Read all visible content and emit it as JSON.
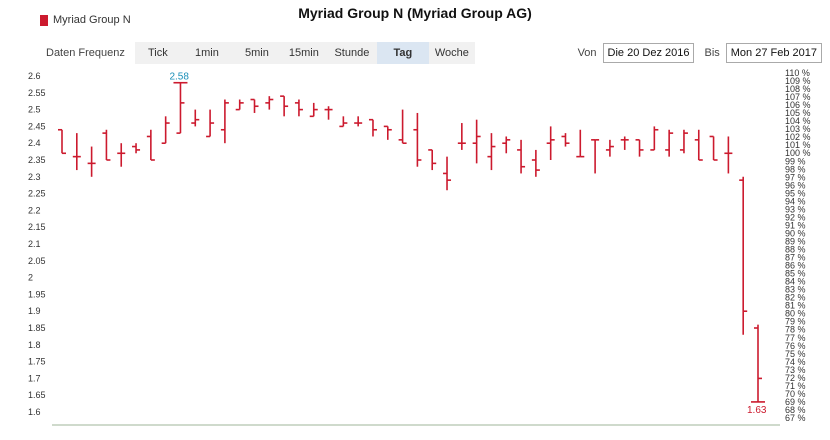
{
  "legend": {
    "label": "Myriad Group N",
    "color": "#cc1a2e"
  },
  "title": "Myriad Group N (Myriad Group AG)",
  "toolbar": {
    "label": "Daten Frequenz",
    "tabs": [
      "Tick",
      "1min",
      "5min",
      "15min",
      "Stunde",
      "Tag",
      "Woche"
    ],
    "active": "Tag"
  },
  "dates": {
    "from_label": "Von",
    "from_value": "Die 20 Dez 2016",
    "to_label": "Bis",
    "to_value": "Mon 27 Feb 2017"
  },
  "chart_data": {
    "type": "ohlc",
    "title": "Myriad Group N (Myriad Group AG)",
    "series_name": "Myriad Group N",
    "color": "#cc1a2e",
    "ylim": [
      1.6,
      2.6
    ],
    "yticks": [
      2.6,
      2.55,
      2.5,
      2.45,
      2.4,
      2.35,
      2.3,
      2.25,
      2.2,
      2.15,
      2.1,
      2.05,
      2,
      1.95,
      1.9,
      1.85,
      1.8,
      1.75,
      1.7,
      1.65,
      1.6
    ],
    "right_axis_percent": [
      110,
      109,
      108,
      107,
      106,
      105,
      104,
      103,
      102,
      101,
      100,
      99,
      98,
      97,
      96,
      95,
      94,
      93,
      92,
      91,
      90,
      89,
      88,
      87,
      86,
      85,
      84,
      83,
      82,
      81,
      80,
      79,
      78,
      77,
      76,
      75,
      74,
      73,
      72,
      71,
      70,
      69,
      68,
      67
    ],
    "bars": [
      {
        "o": 2.44,
        "h": 2.44,
        "l": 2.37,
        "c": 2.37
      },
      {
        "o": 2.36,
        "h": 2.43,
        "l": 2.32,
        "c": 2.36
      },
      {
        "o": 2.34,
        "h": 2.39,
        "l": 2.3,
        "c": 2.34
      },
      {
        "o": 2.43,
        "h": 2.44,
        "l": 2.35,
        "c": 2.35
      },
      {
        "o": 2.37,
        "h": 2.4,
        "l": 2.33,
        "c": 2.37
      },
      {
        "o": 2.39,
        "h": 2.4,
        "l": 2.37,
        "c": 2.38
      },
      {
        "o": 2.42,
        "h": 2.44,
        "l": 2.35,
        "c": 2.35
      },
      {
        "o": 2.4,
        "h": 2.48,
        "l": 2.4,
        "c": 2.46
      },
      {
        "o": 2.43,
        "h": 2.58,
        "l": 2.43,
        "c": 2.52
      },
      {
        "o": 2.46,
        "h": 2.5,
        "l": 2.45,
        "c": 2.47
      },
      {
        "o": 2.42,
        "h": 2.5,
        "l": 2.42,
        "c": 2.46
      },
      {
        "o": 2.44,
        "h": 2.53,
        "l": 2.4,
        "c": 2.52
      },
      {
        "o": 2.5,
        "h": 2.53,
        "l": 2.5,
        "c": 2.52
      },
      {
        "o": 2.53,
        "h": 2.53,
        "l": 2.49,
        "c": 2.51
      },
      {
        "o": 2.52,
        "h": 2.54,
        "l": 2.5,
        "c": 2.53
      },
      {
        "o": 2.54,
        "h": 2.54,
        "l": 2.48,
        "c": 2.51
      },
      {
        "o": 2.52,
        "h": 2.53,
        "l": 2.48,
        "c": 2.5
      },
      {
        "o": 2.48,
        "h": 2.52,
        "l": 2.48,
        "c": 2.5
      },
      {
        "o": 2.5,
        "h": 2.51,
        "l": 2.47,
        "c": 2.5
      },
      {
        "o": 2.45,
        "h": 2.48,
        "l": 2.45,
        "c": 2.46
      },
      {
        "o": 2.46,
        "h": 2.48,
        "l": 2.45,
        "c": 2.46
      },
      {
        "o": 2.47,
        "h": 2.47,
        "l": 2.42,
        "c": 2.44
      },
      {
        "o": 2.45,
        "h": 2.45,
        "l": 2.41,
        "c": 2.44
      },
      {
        "o": 2.41,
        "h": 2.5,
        "l": 2.4,
        "c": 2.4
      },
      {
        "o": 2.44,
        "h": 2.49,
        "l": 2.33,
        "c": 2.35
      },
      {
        "o": 2.38,
        "h": 2.38,
        "l": 2.32,
        "c": 2.34
      },
      {
        "o": 2.31,
        "h": 2.36,
        "l": 2.26,
        "c": 2.29
      },
      {
        "o": 2.4,
        "h": 2.46,
        "l": 2.38,
        "c": 2.4
      },
      {
        "o": 2.4,
        "h": 2.47,
        "l": 2.34,
        "c": 2.42
      },
      {
        "o": 2.36,
        "h": 2.43,
        "l": 2.32,
        "c": 2.39
      },
      {
        "o": 2.4,
        "h": 2.42,
        "l": 2.37,
        "c": 2.41
      },
      {
        "o": 2.38,
        "h": 2.41,
        "l": 2.31,
        "c": 2.33
      },
      {
        "o": 2.35,
        "h": 2.38,
        "l": 2.3,
        "c": 2.32
      },
      {
        "o": 2.4,
        "h": 2.45,
        "l": 2.35,
        "c": 2.41
      },
      {
        "o": 2.42,
        "h": 2.43,
        "l": 2.39,
        "c": 2.4
      },
      {
        "o": 2.36,
        "h": 2.44,
        "l": 2.36,
        "c": 2.36
      },
      {
        "o": 2.41,
        "h": 2.41,
        "l": 2.31,
        "c": 2.41
      },
      {
        "o": 2.38,
        "h": 2.41,
        "l": 2.36,
        "c": 2.39
      },
      {
        "o": 2.41,
        "h": 2.42,
        "l": 2.38,
        "c": 2.41
      },
      {
        "o": 2.41,
        "h": 2.41,
        "l": 2.36,
        "c": 2.38
      },
      {
        "o": 2.38,
        "h": 2.45,
        "l": 2.38,
        "c": 2.44
      },
      {
        "o": 2.38,
        "h": 2.44,
        "l": 2.36,
        "c": 2.43
      },
      {
        "o": 2.38,
        "h": 2.44,
        "l": 2.37,
        "c": 2.43
      },
      {
        "o": 2.41,
        "h": 2.44,
        "l": 2.35,
        "c": 2.35
      },
      {
        "o": 2.42,
        "h": 2.42,
        "l": 2.35,
        "c": 2.35
      },
      {
        "o": 2.37,
        "h": 2.42,
        "l": 2.31,
        "c": 2.37
      },
      {
        "o": 2.29,
        "h": 2.3,
        "l": 1.83,
        "c": 1.9
      },
      {
        "o": 1.85,
        "h": 1.86,
        "l": 1.63,
        "c": 1.7
      }
    ],
    "annotations": {
      "max": "2.58",
      "min": "1.63"
    }
  }
}
